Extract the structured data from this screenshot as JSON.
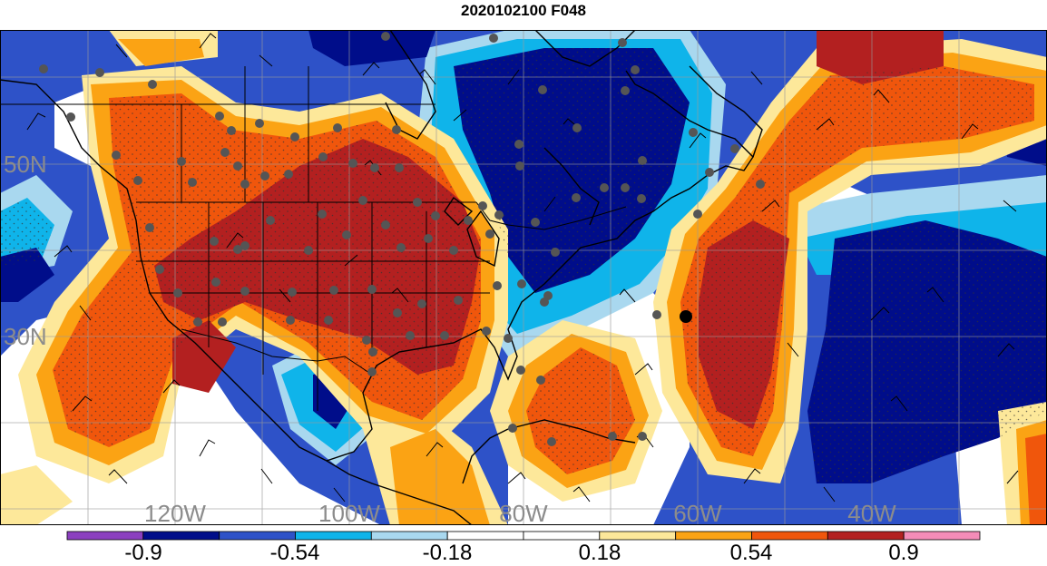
{
  "title": "2020102100 F048",
  "map": {
    "lon_labels": [
      "120W",
      "100W",
      "80W",
      "60W",
      "40W"
    ],
    "lat_labels": [
      "50N",
      "30N"
    ]
  },
  "colorbar": {
    "tick_labels": [
      "-0.9",
      "-0.54",
      "-0.18",
      "0.18",
      "0.54",
      "0.9"
    ],
    "colors": [
      "#8b3fbf",
      "#000d8a",
      "#2e52c8",
      "#0fb4ea",
      "#a9d8ef",
      "#ffffff",
      "#ffffff",
      "#fde89a",
      "#fba314",
      "#f0560c",
      "#b32020",
      "#f48cb8"
    ]
  },
  "colors": {
    "strong_negative": "#000d8a",
    "negative": "#2e52c8",
    "weak_negative": "#0fb4ea",
    "faint_negative": "#a9d8ef",
    "faint_positive": "#fde89a",
    "weak_positive": "#fba314",
    "positive": "#f0560c",
    "strong_positive": "#b32020",
    "station": "#555555"
  }
}
